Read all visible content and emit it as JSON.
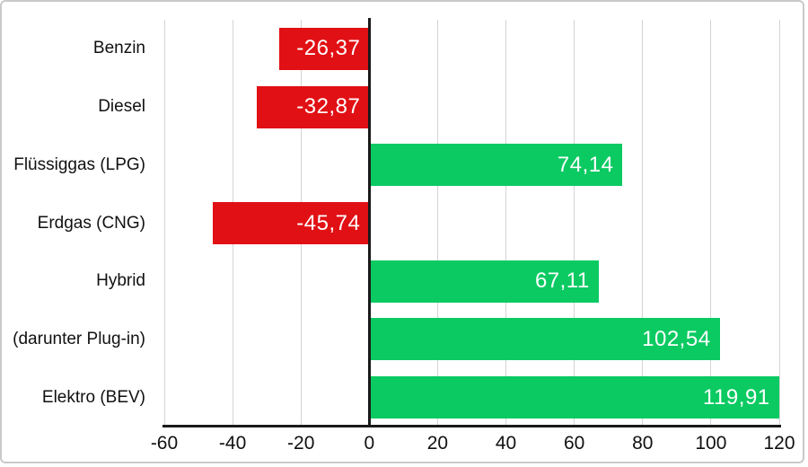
{
  "chart_data": {
    "type": "bar",
    "orientation": "horizontal",
    "title": "",
    "xlabel": "",
    "ylabel": "",
    "categories": [
      "Benzin",
      "Diesel",
      "Flüssiggas (LPG)",
      "Erdgas (CNG)",
      "Hybrid",
      "(darunter Plug-in)",
      "Elektro (BEV)"
    ],
    "values": [
      -26.37,
      -32.87,
      74.14,
      -45.74,
      67.11,
      102.54,
      119.91
    ],
    "value_labels": [
      "-26,37",
      "-32,87",
      "74,14",
      "-45,74",
      "67,11",
      "102,54",
      "119,91"
    ],
    "xlim": [
      -60,
      120
    ],
    "x_ticks": [
      -60,
      -40,
      -20,
      0,
      20,
      40,
      60,
      80,
      100,
      120
    ],
    "x_tick_labels": [
      "-60",
      "-40",
      "-20",
      "0",
      "20",
      "40",
      "60",
      "80",
      "100",
      "120"
    ],
    "grid": "vertical-only",
    "legend": "none",
    "decimal_separator": ",",
    "colors": {
      "positive_bar": "#0bca62",
      "negative_bar": "#e11014",
      "value_text": "#ffffff",
      "gridline": "#d4d4d4",
      "axis": "#1a1a1a",
      "frame_border": "#c9c9c9",
      "label_text": "#111111"
    }
  }
}
